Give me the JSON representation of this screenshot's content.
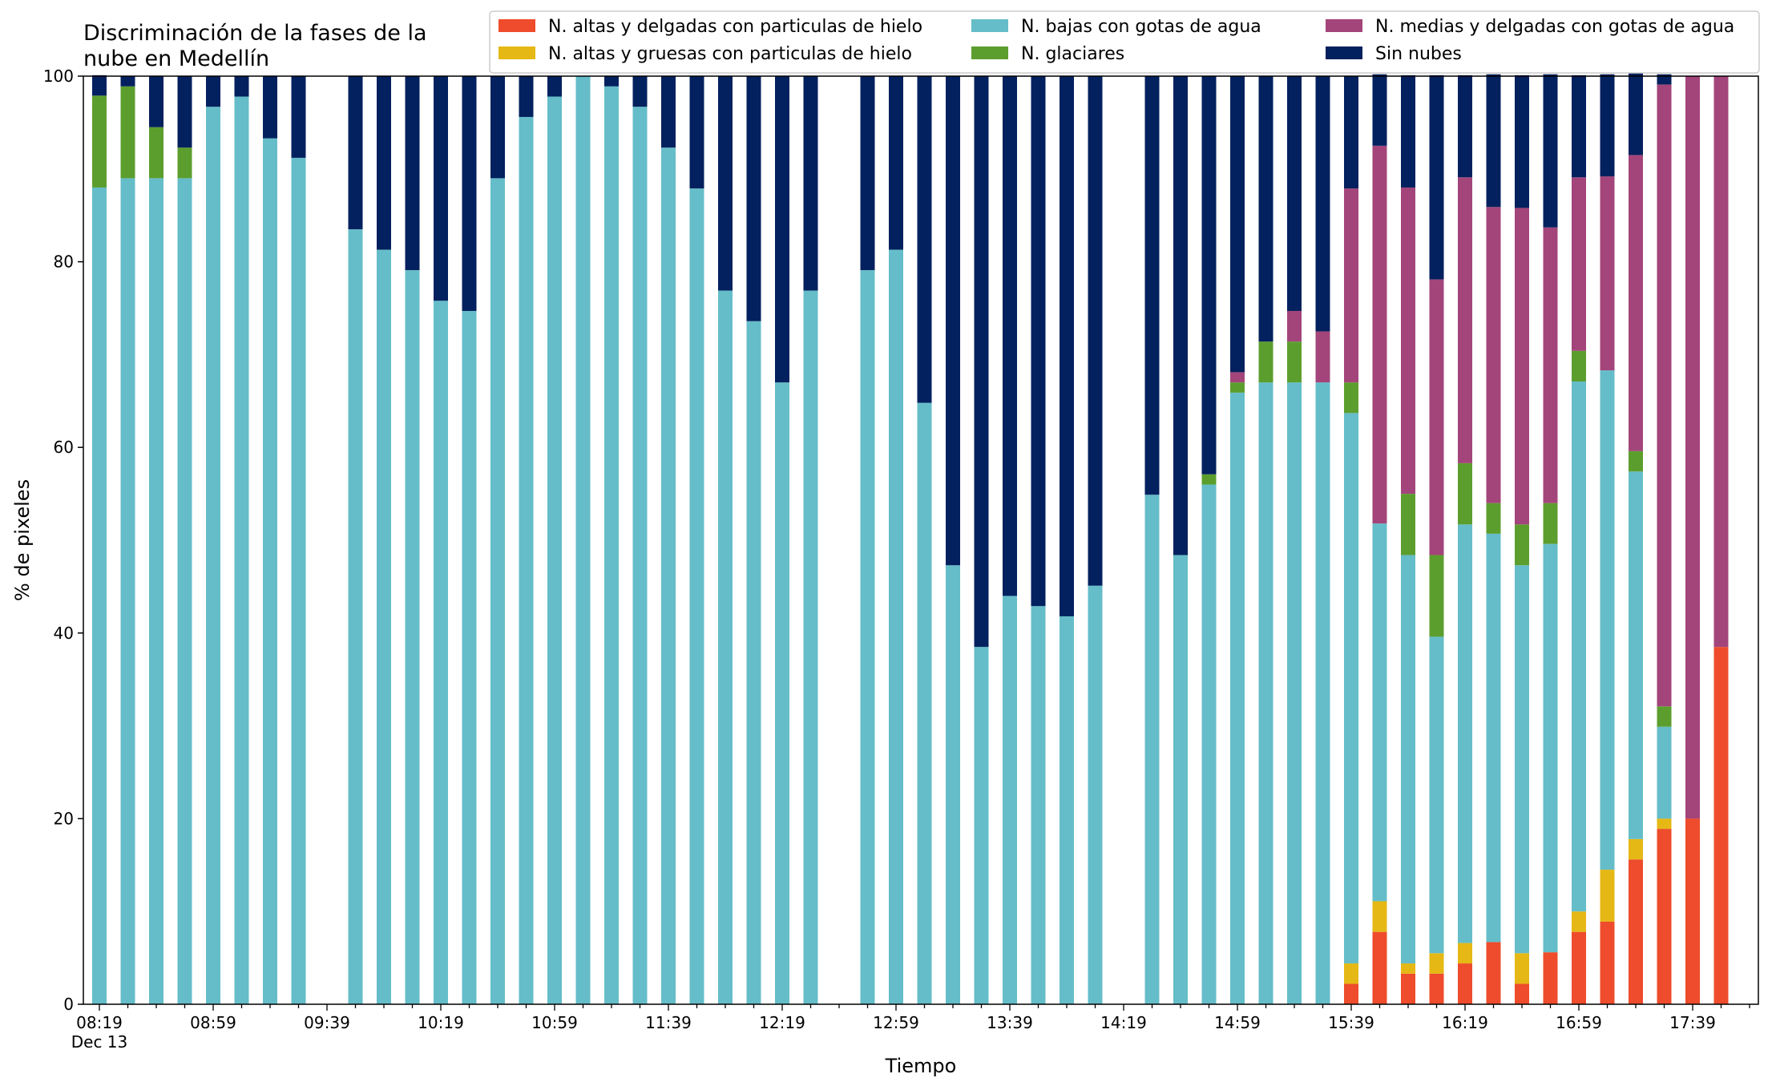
{
  "chart_data": {
    "type": "bar",
    "stacked": true,
    "title": "Discriminación de la fases de la\nnube en Medellín",
    "xlabel": "Tiempo",
    "ylabel": "% de pixeles",
    "ylim": [
      0,
      100
    ],
    "yticks": [
      0,
      20,
      40,
      60,
      80,
      100
    ],
    "x_start": "08:19",
    "x_step_minutes": 10,
    "x_tick_labels": [
      "08:19",
      "08:59",
      "09:39",
      "10:19",
      "10:59",
      "11:39",
      "12:19",
      "12:59",
      "13:39",
      "14:19",
      "14:59",
      "15:39",
      "16:19",
      "16:59",
      "17:39"
    ],
    "x_date_label": "Dec 13",
    "legend_location": "top",
    "legend_columns": 3,
    "grid": false,
    "x": [
      "08:19",
      "08:29",
      "08:39",
      "08:49",
      "08:59",
      "09:09",
      "09:19",
      "09:29",
      "09:39",
      "09:49",
      "09:59",
      "10:09",
      "10:19",
      "10:29",
      "10:39",
      "10:49",
      "10:59",
      "11:09",
      "11:19",
      "11:29",
      "11:39",
      "11:49",
      "11:59",
      "12:09",
      "12:19",
      "12:29",
      "12:39",
      "12:49",
      "12:59",
      "13:09",
      "13:19",
      "13:29",
      "13:39",
      "13:49",
      "13:59",
      "14:09",
      "14:19",
      "14:29",
      "14:39",
      "14:49",
      "14:59",
      "15:09",
      "15:19",
      "15:29",
      "15:39",
      "15:49",
      "15:59",
      "16:09",
      "16:19",
      "16:29",
      "16:39",
      "16:49",
      "16:59",
      "17:09",
      "17:19",
      "17:29",
      "17:39",
      "17:49"
    ],
    "series": [
      {
        "name": "N. altas y delgadas con particulas de hielo",
        "color": "#ee4c2c",
        "values": [
          0,
          0,
          0,
          0,
          0,
          0,
          0,
          0,
          null,
          0,
          0,
          0,
          0,
          0,
          0,
          0,
          0,
          0,
          0,
          0,
          0,
          0,
          0,
          0,
          0,
          0,
          null,
          0,
          0,
          0,
          0,
          0,
          0,
          0,
          0,
          0,
          null,
          0,
          0,
          0,
          0,
          0,
          0,
          0,
          2.2,
          7.8,
          3.3,
          3.3,
          4.4,
          6.7,
          2.2,
          5.6,
          7.8,
          8.9,
          15.6,
          18.9,
          20,
          38.5
        ]
      },
      {
        "name": "N. altas y gruesas con particulas de hielo",
        "color": "#e5b815",
        "values": [
          0,
          0,
          0,
          0,
          0,
          0,
          0,
          0,
          null,
          0,
          0,
          0,
          0,
          0,
          0,
          0,
          0,
          0,
          0,
          0,
          0,
          0,
          0,
          0,
          0,
          0,
          null,
          0,
          0,
          0,
          0,
          0,
          0,
          0,
          0,
          0,
          null,
          0,
          0,
          0,
          0,
          0,
          0,
          0,
          2.2,
          3.3,
          1.1,
          2.2,
          2.2,
          0,
          3.3,
          0,
          2.2,
          5.6,
          2.2,
          1.1,
          0,
          0
        ]
      },
      {
        "name": "N. bajas con gotas de agua",
        "color": "#65bdc9",
        "values": [
          88,
          89,
          89,
          89,
          96.7,
          97.8,
          93.3,
          91.2,
          null,
          83.5,
          81.3,
          79.1,
          75.8,
          74.7,
          89,
          95.6,
          97.8,
          100,
          98.9,
          96.7,
          92.3,
          87.9,
          76.9,
          73.6,
          67,
          76.9,
          null,
          79.1,
          81.3,
          64.8,
          47.3,
          38.5,
          44,
          42.9,
          41.8,
          45.1,
          null,
          54.9,
          48.4,
          56,
          65.9,
          67,
          67,
          67,
          59.3,
          40.7,
          44,
          34.1,
          45.1,
          44,
          41.8,
          44,
          57.1,
          53.8,
          39.6,
          9.9,
          0,
          0
        ]
      },
      {
        "name": "N. glaciares",
        "color": "#5c9e2e",
        "values": [
          9.9,
          9.9,
          5.5,
          3.3,
          0,
          0,
          0,
          0,
          null,
          0,
          0,
          0,
          0,
          0,
          0,
          0,
          0,
          0,
          0,
          0,
          0,
          0,
          0,
          0,
          0,
          0,
          null,
          0,
          0,
          0,
          0,
          0,
          0,
          0,
          0,
          0,
          null,
          0,
          0,
          1.1,
          1.1,
          4.4,
          4.4,
          0,
          3.3,
          0,
          6.6,
          8.8,
          6.6,
          3.3,
          4.4,
          4.4,
          3.3,
          0,
          2.2,
          2.2,
          0,
          0
        ]
      },
      {
        "name": "N. medias y delgadas con gotas de agua",
        "color": "#a3457a",
        "values": [
          0,
          0,
          0,
          0,
          0,
          0,
          0,
          0,
          null,
          0,
          0,
          0,
          0,
          0,
          0,
          0,
          0,
          0,
          0,
          0,
          0,
          0,
          0,
          0,
          0,
          0,
          null,
          0,
          0,
          0,
          0,
          0,
          0,
          0,
          0,
          0,
          null,
          0,
          0,
          0,
          1.1,
          0,
          3.3,
          5.5,
          20.9,
          40.7,
          33,
          29.7,
          30.8,
          31.9,
          34.1,
          29.7,
          18.7,
          20.9,
          31.9,
          67,
          80,
          61.5
        ]
      },
      {
        "name": "Sin nubes",
        "color": "#03215e",
        "values": [
          2.2,
          1.1,
          5.5,
          7.7,
          3.3,
          2.2,
          6.7,
          8.8,
          null,
          16.5,
          18.7,
          20.9,
          24.2,
          25.3,
          11,
          4.4,
          2.2,
          0,
          1.1,
          3.3,
          7.7,
          12.1,
          23.1,
          26.4,
          33,
          23.1,
          null,
          20.9,
          18.7,
          35.2,
          52.7,
          61.5,
          56,
          57.1,
          58.2,
          54.9,
          null,
          45.1,
          51.6,
          42.9,
          31.9,
          28.6,
          25.3,
          27.5,
          12.1,
          7.7,
          12.1,
          22,
          11,
          14.3,
          14.3,
          16.5,
          11,
          11,
          8.8,
          1.1,
          0,
          0
        ]
      }
    ]
  }
}
